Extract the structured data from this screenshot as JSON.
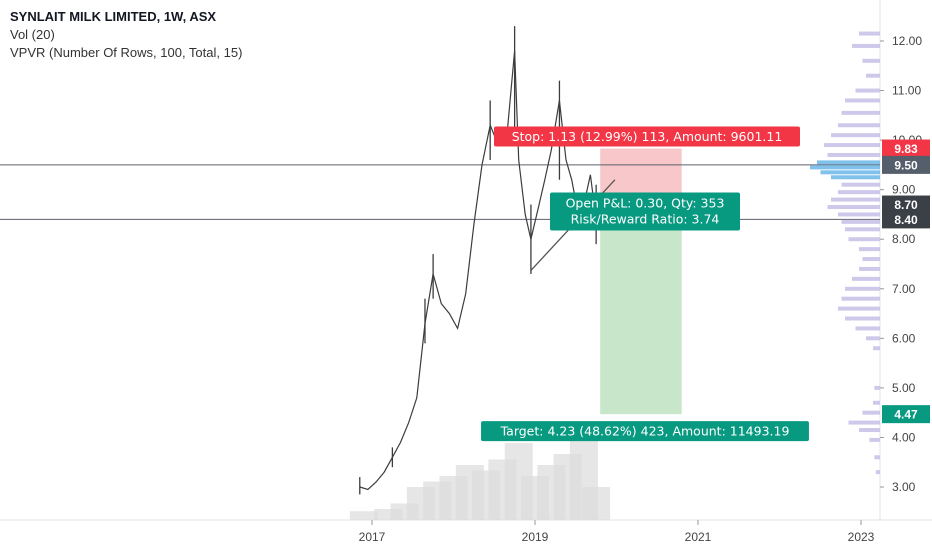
{
  "legend": {
    "title": "SYNLAIT MILK LIMITED, 1W, ASX",
    "volume": "Vol (20)",
    "vpvr": "VPVR (Number Of Rows, 100, Total, 15)"
  },
  "colors": {
    "stop_red": "#f23645",
    "target_green": "#089981",
    "profit_fill": "#c8e6c9",
    "loss_fill": "#f7c7c9",
    "price_tag_gray": "#555e6b",
    "vpvr_purple": "#c5c0e6",
    "vpvr_blue": "#6ab7e8",
    "candle": "#3c3c3c",
    "volume": "#dcdcdc"
  },
  "chart_data": {
    "type": "candlestick",
    "y_axis_ticks": [
      3.0,
      4.0,
      5.0,
      6.0,
      7.0,
      8.0,
      9.0,
      10.0,
      11.0,
      12.0
    ],
    "y_axis_tick_labels": [
      "3.00",
      "4.00",
      "5.00",
      "6.00",
      "7.00",
      "8.00",
      "9.00",
      "10.00",
      "11.00",
      "12.00"
    ],
    "ylim": [
      2.3,
      12.7
    ],
    "x_axis_ticks": [
      2017,
      2019,
      2021,
      2023
    ],
    "x_axis_tick_labels": [
      "2017",
      "2019",
      "2021",
      "2023"
    ],
    "xlim": [
      2016.05,
      2023.2
    ],
    "price_series": [
      [
        2016.85,
        3.0
      ],
      [
        2016.95,
        2.95
      ],
      [
        2017.05,
        3.1
      ],
      [
        2017.15,
        3.3
      ],
      [
        2017.25,
        3.6
      ],
      [
        2017.35,
        3.9
      ],
      [
        2017.45,
        4.3
      ],
      [
        2017.55,
        4.8
      ],
      [
        2017.65,
        6.3
      ],
      [
        2017.75,
        7.3
      ],
      [
        2017.85,
        6.7
      ],
      [
        2017.95,
        6.5
      ],
      [
        2018.05,
        6.2
      ],
      [
        2018.15,
        6.9
      ],
      [
        2018.25,
        8.3
      ],
      [
        2018.35,
        9.5
      ],
      [
        2018.45,
        10.3
      ],
      [
        2018.55,
        9.9
      ],
      [
        2018.65,
        10.0
      ],
      [
        2018.75,
        11.8
      ],
      [
        2018.8,
        9.6
      ],
      [
        2018.88,
        8.5
      ],
      [
        2018.95,
        8.0
      ],
      [
        2019.05,
        8.7
      ],
      [
        2019.12,
        9.2
      ],
      [
        2019.2,
        9.8
      ],
      [
        2019.3,
        10.8
      ],
      [
        2019.38,
        9.6
      ],
      [
        2019.45,
        9.2
      ],
      [
        2019.52,
        8.6
      ],
      [
        2019.6,
        8.7
      ],
      [
        2019.68,
        9.3
      ],
      [
        2019.75,
        8.4
      ],
      [
        2019.8,
        8.9
      ]
    ],
    "price_high_low": [
      [
        2016.85,
        3.2,
        2.85
      ],
      [
        2017.25,
        3.8,
        3.4
      ],
      [
        2017.65,
        6.8,
        5.9
      ],
      [
        2017.75,
        7.7,
        6.8
      ],
      [
        2018.45,
        10.8,
        9.6
      ],
      [
        2018.75,
        12.3,
        10.1
      ],
      [
        2018.95,
        8.7,
        7.3
      ],
      [
        2019.3,
        11.2,
        9.2
      ],
      [
        2019.75,
        9.1,
        7.9
      ]
    ],
    "volume_series": [
      [
        2016.9,
        0.08
      ],
      [
        2017.2,
        0.1
      ],
      [
        2017.4,
        0.15
      ],
      [
        2017.6,
        0.3
      ],
      [
        2017.8,
        0.35
      ],
      [
        2018.0,
        0.4
      ],
      [
        2018.2,
        0.5
      ],
      [
        2018.4,
        0.45
      ],
      [
        2018.6,
        0.55
      ],
      [
        2018.8,
        0.7
      ],
      [
        2019.0,
        0.4
      ],
      [
        2019.2,
        0.5
      ],
      [
        2019.4,
        0.6
      ],
      [
        2019.6,
        0.75
      ],
      [
        2019.75,
        0.3
      ]
    ],
    "trendline": {
      "from": [
        2018.95,
        7.37
      ],
      "to": [
        2019.98,
        9.2
      ]
    },
    "horizontal_lines": [
      9.5,
      8.4
    ],
    "position": {
      "start": 2019.8,
      "end": 2020.8,
      "entry": 8.7,
      "stop": 9.83,
      "target": 4.47,
      "stop_label": "Stop: 1.13 (12.99%) 113, Amount: 9601.11",
      "target_label": "Target: 4.23 (48.62%) 423, Amount: 11493.19",
      "pnl_label": "Open P&L: 0.30, Qty: 353",
      "rr_label": "Risk/Reward Ratio: 3.74"
    },
    "price_tags": [
      {
        "value": 9.83,
        "label": "9.83",
        "color": "#f23645"
      },
      {
        "value": 9.5,
        "label": "9.50",
        "color": "#555e6b"
      },
      {
        "value": 8.7,
        "label": "8.70",
        "color": "#3b3f46"
      },
      {
        "value": 8.4,
        "label": "8.40",
        "color": "#3b3f46"
      },
      {
        "value": 4.47,
        "label": "4.47",
        "color": "#089981"
      }
    ],
    "vpvr_profile": [
      [
        12.15,
        0.3
      ],
      [
        11.9,
        0.4
      ],
      [
        11.6,
        0.25
      ],
      [
        11.3,
        0.2
      ],
      [
        11.0,
        0.35
      ],
      [
        10.8,
        0.5
      ],
      [
        10.55,
        0.55
      ],
      [
        10.3,
        0.6
      ],
      [
        10.1,
        0.7
      ],
      [
        9.9,
        0.8
      ],
      [
        9.7,
        0.75
      ],
      [
        9.55,
        0.9
      ],
      [
        9.45,
        1.0
      ],
      [
        9.35,
        0.85
      ],
      [
        9.25,
        0.7
      ],
      [
        9.1,
        0.55
      ],
      [
        8.95,
        0.6
      ],
      [
        8.8,
        0.7
      ],
      [
        8.65,
        0.75
      ],
      [
        8.5,
        0.6
      ],
      [
        8.35,
        0.55
      ],
      [
        8.2,
        0.5
      ],
      [
        8.0,
        0.45
      ],
      [
        7.8,
        0.3
      ],
      [
        7.6,
        0.25
      ],
      [
        7.4,
        0.3
      ],
      [
        7.2,
        0.4
      ],
      [
        7.0,
        0.5
      ],
      [
        6.8,
        0.55
      ],
      [
        6.6,
        0.6
      ],
      [
        6.4,
        0.5
      ],
      [
        6.2,
        0.35
      ],
      [
        6.0,
        0.2
      ],
      [
        5.8,
        0.1
      ],
      [
        5.0,
        0.08
      ],
      [
        4.7,
        0.1
      ],
      [
        4.5,
        0.25
      ],
      [
        4.3,
        0.45
      ],
      [
        4.15,
        0.3
      ],
      [
        3.95,
        0.15
      ],
      [
        3.6,
        0.08
      ],
      [
        3.3,
        0.06
      ]
    ]
  }
}
